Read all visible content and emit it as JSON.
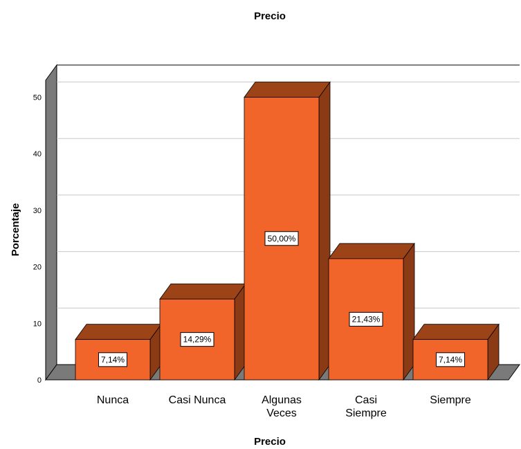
{
  "chart_data": {
    "type": "bar",
    "title": "Precio",
    "xlabel": "Precio",
    "ylabel": "Porcentaje",
    "ylim": [
      0,
      50
    ],
    "yticks": [
      "0",
      "10",
      "20",
      "30",
      "40",
      "50"
    ],
    "categories": [
      [
        "Nunca"
      ],
      [
        "Casi Nunca"
      ],
      [
        "Algunas",
        "Veces"
      ],
      [
        "Casi",
        "Siempre"
      ],
      [
        "Siempre"
      ]
    ],
    "values": [
      7.14,
      14.29,
      50.0,
      21.43,
      7.14
    ],
    "data_labels": [
      "7,14%",
      "14,29%",
      "50,00%",
      "21,43%",
      "7,14%"
    ],
    "grid": true,
    "style": "3d",
    "colors": {
      "bar_front": "#f2652a",
      "bar_top": "#9c4418",
      "bar_side": "#8a3a14",
      "wall": "#ffffff",
      "wall_shadow": "#7a7a7a",
      "grid": "#c8c8c8"
    }
  }
}
